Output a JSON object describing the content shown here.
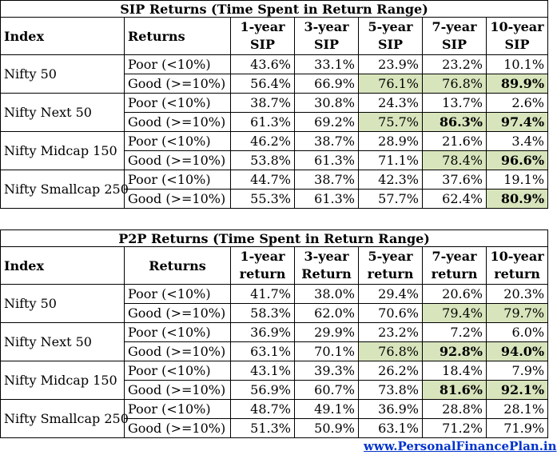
{
  "sip": {
    "title": "SIP Returns (Time Spent in Return Range)",
    "headers": [
      "Index",
      "Returns",
      "1-year SIP",
      "3-year SIP",
      "5-year SIP",
      "7-year SIP",
      "10-year SIP"
    ],
    "header_lines": [
      [
        "1-year",
        "SIP"
      ],
      [
        "3-year",
        "SIP"
      ],
      [
        "5-year",
        "SIP"
      ],
      [
        "7-year",
        "SIP"
      ],
      [
        "10-year",
        "SIP"
      ]
    ],
    "rows": [
      {
        "index": "Nifty 50",
        "poor": {
          "label": "Poor (<10%)",
          "values": [
            "43.6%",
            "33.1%",
            "23.9%",
            "23.2%",
            "10.1%"
          ]
        },
        "good": {
          "label": "Good  (>=10%)",
          "values": [
            "56.4%",
            "66.9%",
            "76.1%",
            "76.8%",
            "89.9%"
          ]
        }
      },
      {
        "index": "Nifty Next 50",
        "poor": {
          "label": "Poor (<10%)",
          "values": [
            "38.7%",
            "30.8%",
            "24.3%",
            "13.7%",
            "2.6%"
          ]
        },
        "good": {
          "label": "Good  (>=10%)",
          "values": [
            "61.3%",
            "69.2%",
            "75.7%",
            "86.3%",
            "97.4%"
          ]
        }
      },
      {
        "index": "Nifty Midcap 150",
        "poor": {
          "label": "Poor (<10%)",
          "values": [
            "46.2%",
            "38.7%",
            "28.9%",
            "21.6%",
            "3.4%"
          ]
        },
        "good": {
          "label": "Good  (>=10%)",
          "values": [
            "53.8%",
            "61.3%",
            "71.1%",
            "78.4%",
            "96.6%"
          ]
        }
      },
      {
        "index": "Nifty Smallcap 250",
        "poor": {
          "label": "Poor (<10%)",
          "values": [
            "44.7%",
            "38.7%",
            "42.3%",
            "37.6%",
            "19.1%"
          ]
        },
        "good": {
          "label": "Good  (>=10%)",
          "values": [
            "55.3%",
            "61.3%",
            "57.7%",
            "62.4%",
            "80.9%"
          ]
        }
      }
    ]
  },
  "p2p": {
    "title": "P2P Returns (Time Spent in Return Range)",
    "headers": [
      "Index",
      "Returns",
      "1-year return",
      "3-year Return",
      "5-year return",
      "7-year return",
      "10-year return"
    ],
    "header_lines": [
      [
        "1-year",
        "return"
      ],
      [
        "3-year",
        "Return"
      ],
      [
        "5-year",
        "return"
      ],
      [
        "7-year",
        "return"
      ],
      [
        "10-year",
        "return"
      ]
    ],
    "rows": [
      {
        "index": "Nifty 50",
        "poor": {
          "label": "Poor (<10%)",
          "values": [
            "41.7%",
            "38.0%",
            "29.4%",
            "20.6%",
            "20.3%"
          ]
        },
        "good": {
          "label": "Good  (>=10%)",
          "values": [
            "58.3%",
            "62.0%",
            "70.6%",
            "79.4%",
            "79.7%"
          ]
        }
      },
      {
        "index": "Nifty Next 50",
        "poor": {
          "label": "Poor (<10%)",
          "values": [
            "36.9%",
            "29.9%",
            "23.2%",
            "7.2%",
            "6.0%"
          ]
        },
        "good": {
          "label": "Good  (>=10%)",
          "values": [
            "63.1%",
            "70.1%",
            "76.8%",
            "92.8%",
            "94.0%"
          ]
        }
      },
      {
        "index": "Nifty Midcap 150",
        "poor": {
          "label": "Poor (<10%)",
          "values": [
            "43.1%",
            "39.3%",
            "26.2%",
            "18.4%",
            "7.9%"
          ]
        },
        "good": {
          "label": "Good  (>=10%)",
          "values": [
            "56.9%",
            "60.7%",
            "73.8%",
            "81.6%",
            "92.1%"
          ]
        }
      },
      {
        "index": "Nifty Smallcap 250",
        "poor": {
          "label": "Poor (<10%)",
          "values": [
            "48.7%",
            "49.1%",
            "36.9%",
            "28.8%",
            "28.1%"
          ]
        },
        "good": {
          "label": "Good  (>=10%)",
          "values": [
            "51.3%",
            "50.9%",
            "63.1%",
            "71.2%",
            "71.9%"
          ]
        }
      }
    ]
  },
  "footer": {
    "link": "www.PersonalFinancePlan.in"
  },
  "colors": {
    "highlight": "#d8e4bc",
    "link": "#0033cc"
  }
}
